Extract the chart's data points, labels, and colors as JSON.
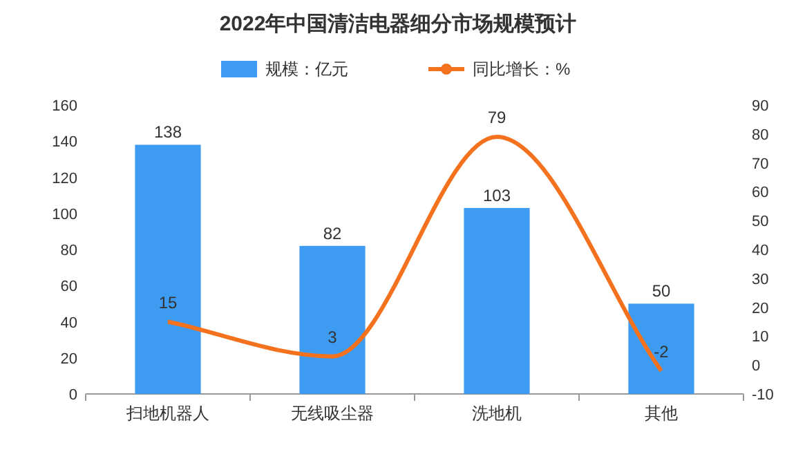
{
  "chart_data": {
    "type": "bar",
    "title": "2022年中国清洁电器细分市场规模预计",
    "categories": [
      "扫地机器人",
      "无线吸尘器",
      "洗地机",
      "其他"
    ],
    "series": [
      {
        "name": "规模：亿元",
        "color": "#3d9cf2",
        "values": [
          138,
          82,
          103,
          50
        ]
      },
      {
        "name": "同比增长：%",
        "type": "line",
        "axis": "y2",
        "color": "#f4721e",
        "values": [
          15,
          3,
          79,
          -2
        ]
      }
    ],
    "ylim": [
      0,
      160
    ],
    "yticks": [
      0,
      20,
      40,
      60,
      80,
      100,
      120,
      140,
      160
    ],
    "y2lim": [
      -10,
      90
    ],
    "y2ticks": [
      -10,
      0,
      10,
      20,
      30,
      40,
      50,
      60,
      70,
      80,
      90
    ],
    "data_labels": true,
    "legend": "top",
    "grid": false
  }
}
